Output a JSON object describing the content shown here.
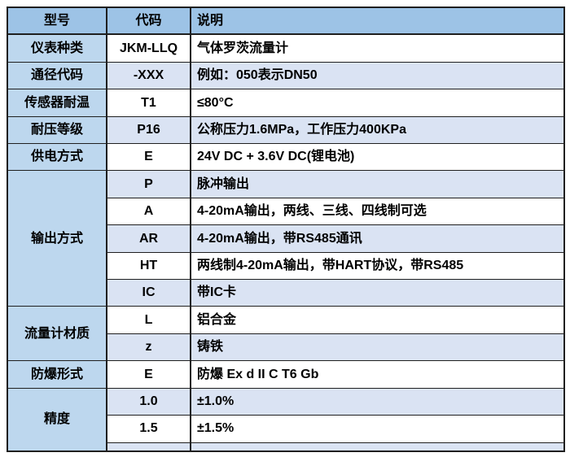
{
  "colors": {
    "header_bg": "#9dc3e6",
    "category_bg": "#bdd7ee",
    "stripe_bg": "#dae3f3",
    "row_bg": "#ffffff",
    "border_color": "#1f1f1f",
    "text_color": "#000000"
  },
  "table": {
    "columns": [
      {
        "label": "型号"
      },
      {
        "label": "代码"
      },
      {
        "label": "说明"
      }
    ],
    "groups": [
      {
        "category": "仪表种类",
        "rows": [
          {
            "code": "JKM-LLQ",
            "desc": "气体罗茨流量计"
          }
        ]
      },
      {
        "category": "通径代码",
        "rows": [
          {
            "code": "-XXX",
            "desc": "例如：050表示DN50"
          }
        ]
      },
      {
        "category": "传感器耐温",
        "rows": [
          {
            "code": "T1",
            "desc": "≤80°C"
          }
        ]
      },
      {
        "category": "耐压等级",
        "rows": [
          {
            "code": "P16",
            "desc": "公称压力1.6MPa，工作压力400KPa"
          }
        ]
      },
      {
        "category": "供电方式",
        "rows": [
          {
            "code": "E",
            "desc": "24V DC + 3.6V DC(锂电池)"
          }
        ]
      },
      {
        "category": "输出方式",
        "rows": [
          {
            "code": "P",
            "desc": "脉冲输出"
          },
          {
            "code": "A",
            "desc": "4-20mA输出，两线、三线、四线制可选"
          },
          {
            "code": "AR",
            "desc": "4-20mA输出，带RS485通讯"
          },
          {
            "code": "HT",
            "desc": "两线制4-20mA输出，带HART协议，带RS485"
          },
          {
            "code": "IC",
            "desc": "带IC卡"
          }
        ]
      },
      {
        "category": "流量计材质",
        "rows": [
          {
            "code": "L",
            "desc": "铝合金"
          },
          {
            "code": "z",
            "desc": "铸铁"
          }
        ]
      },
      {
        "category": "防爆形式",
        "rows": [
          {
            "code": "E",
            "desc": "防爆 Ex d II C T6 Gb"
          }
        ]
      },
      {
        "category": "精度",
        "rows": [
          {
            "code": "1.0",
            "desc": "±1.0%"
          },
          {
            "code": "1.5",
            "desc": "±1.5%"
          },
          {
            "code": "",
            "desc": "",
            "spacer": true
          }
        ]
      }
    ]
  }
}
